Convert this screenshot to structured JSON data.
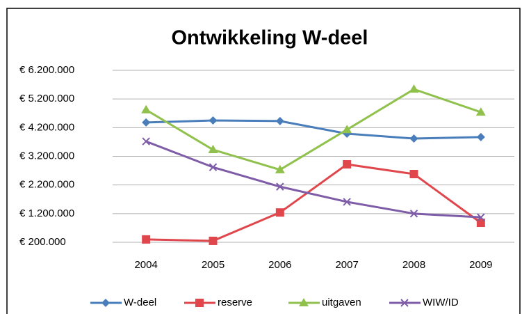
{
  "chart_data": {
    "type": "line",
    "title": "Ontwikkeling W-deel",
    "categories": [
      "2004",
      "2005",
      "2006",
      "2007",
      "2008",
      "2009"
    ],
    "series": [
      {
        "name": "W-deel",
        "color": "#4a7ebb",
        "marker": "diamond",
        "values": [
          4380000,
          4450000,
          4430000,
          3990000,
          3820000,
          3870000
        ]
      },
      {
        "name": "reserve",
        "color": "#e0474c",
        "marker": "square",
        "values": [
          300000,
          250000,
          1240000,
          2920000,
          2580000,
          880000
        ]
      },
      {
        "name": "uitgaven",
        "color": "#8fc14c",
        "marker": "triangle",
        "values": [
          4820000,
          3430000,
          2730000,
          4130000,
          5540000,
          4740000
        ]
      },
      {
        "name": "WIW/ID",
        "color": "#7e5ca8",
        "marker": "x",
        "values": [
          3720000,
          2820000,
          2140000,
          1610000,
          1200000,
          1070000
        ]
      }
    ],
    "ylim": [
      200000,
      6200000
    ],
    "yticks": [
      {
        "value": 200000,
        "label": "€ 200.000"
      },
      {
        "value": 1200000,
        "label": "€ 1.200.000"
      },
      {
        "value": 2200000,
        "label": "€ 2.200.000"
      },
      {
        "value": 3200000,
        "label": "€ 3.200.000"
      },
      {
        "value": 4200000,
        "label": "€ 4.200.000"
      },
      {
        "value": 5200000,
        "label": "€ 5.200.000"
      },
      {
        "value": 6200000,
        "label": "€ 6.200.000"
      }
    ],
    "grid": true,
    "legend": "bottom"
  }
}
